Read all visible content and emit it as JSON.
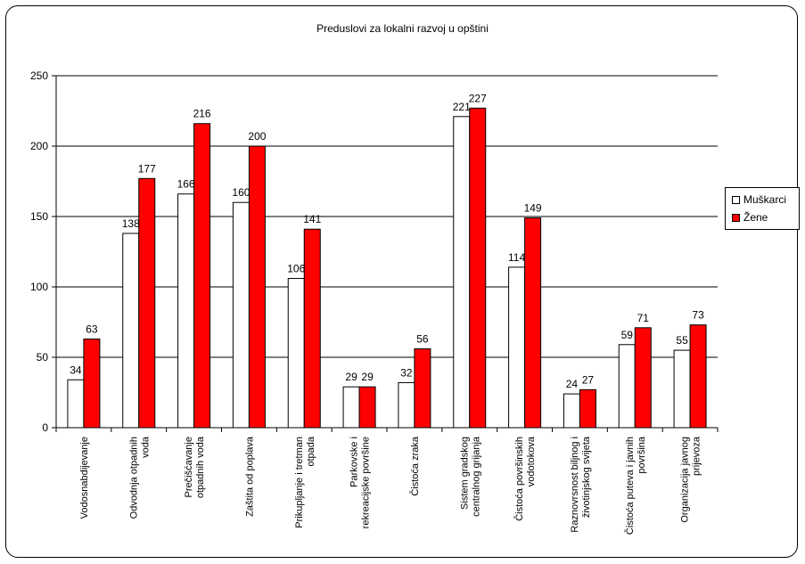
{
  "chart_data": {
    "type": "bar",
    "title": "Preduslovi za lokalni razvoj u opštini",
    "xlabel": "",
    "ylabel": "",
    "ylim": [
      0,
      250
    ],
    "yticks": [
      0,
      50,
      100,
      150,
      200,
      250
    ],
    "grid": true,
    "legend_position": "right",
    "categories": [
      [
        "Vodosnabdijevanje"
      ],
      [
        "Odvodnja otpadnih",
        "voda"
      ],
      [
        "Prečišćavanje",
        "otpadnih voda"
      ],
      [
        "Zaštita od poplava"
      ],
      [
        "Prikupljanje i tretman",
        "otpada"
      ],
      [
        "Parkovske i",
        "rekreacijske površine"
      ],
      [
        "Čistoća zraka"
      ],
      [
        "Sistem gradskog",
        "centralnog grijanja"
      ],
      [
        "Čistoća površinskih",
        "vodotokova"
      ],
      [
        "Raznovrsnost biljnog i",
        "životinjskog svijeta"
      ],
      [
        "Čistoća puteva i javnih",
        "površina"
      ],
      [
        "Organizacija javnog",
        "prijevoza"
      ]
    ],
    "series": [
      {
        "name": "Muškarci",
        "color": "#ffffff",
        "values": [
          34,
          138,
          166,
          160,
          106,
          29,
          32,
          221,
          114,
          24,
          59,
          55
        ]
      },
      {
        "name": "Žene",
        "color": "#ff0000",
        "values": [
          63,
          177,
          216,
          200,
          141,
          29,
          56,
          227,
          149,
          27,
          71,
          73
        ]
      }
    ]
  }
}
